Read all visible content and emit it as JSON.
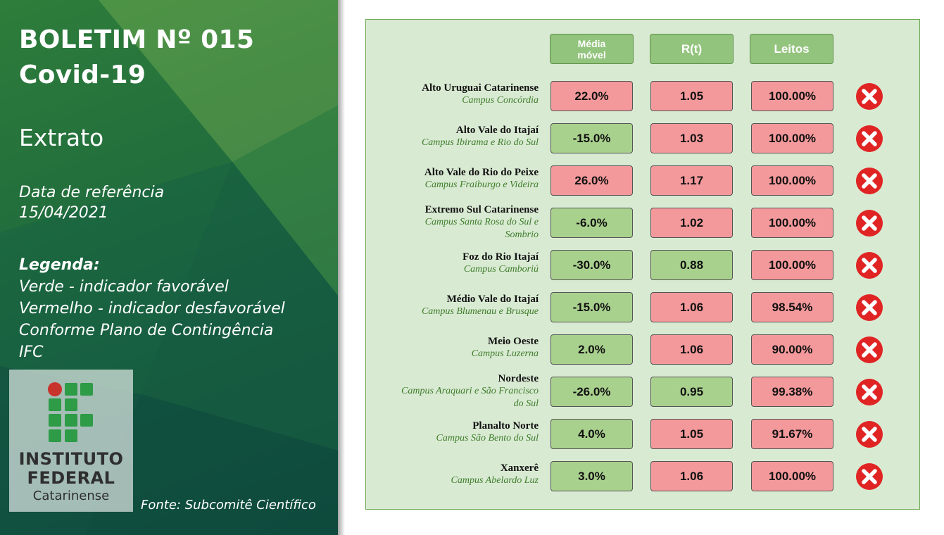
{
  "header": {
    "title_line1": "BOLETIM Nº 015",
    "title_line2": "Covid-19",
    "subtitle": "Extrato",
    "reference_label": "Data de referência",
    "reference_date": "15/04/2021"
  },
  "legend": {
    "title": "Legenda:",
    "lines": [
      "Verde - indicador favorável",
      "Vermelho - indicador desfavorável",
      "Conforme Plano de Contingência",
      "IFC"
    ]
  },
  "logo": {
    "line1": "INSTITUTO",
    "line2": "FEDERAL",
    "line3": "Catarinense"
  },
  "source": "Fonte: Subcomitê Científico",
  "colors": {
    "favorable": "#a9d18e",
    "unfavorable": "#f4999b",
    "header_fill": "#93c47d",
    "status_icon": "#e02424"
  },
  "table": {
    "columns": [
      "Média móvel",
      "R(t)",
      "Leitos"
    ],
    "status_icon_name": "x-circle-icon",
    "rows": [
      {
        "region": "Alto Uruguai Catarinense",
        "campus": "Campus Concórdia",
        "media_movel": "22.0%",
        "media_movel_status": "red",
        "rt": "1.05",
        "rt_status": "red",
        "leitos": "100.00%",
        "leitos_status": "red"
      },
      {
        "region": "Alto Vale do Itajaí",
        "campus": "Campus Ibirama e Rio do Sul",
        "media_movel": "-15.0%",
        "media_movel_status": "green",
        "rt": "1.03",
        "rt_status": "red",
        "leitos": "100.00%",
        "leitos_status": "red"
      },
      {
        "region": "Alto Vale do Rio do Peixe",
        "campus": "Campus Fraiburgo e Videira",
        "media_movel": "26.0%",
        "media_movel_status": "red",
        "rt": "1.17",
        "rt_status": "red",
        "leitos": "100.00%",
        "leitos_status": "red"
      },
      {
        "region": "Extremo Sul Catarinense",
        "campus": "Campus Santa Rosa do Sul e Sombrio",
        "media_movel": "-6.0%",
        "media_movel_status": "green",
        "rt": "1.02",
        "rt_status": "red",
        "leitos": "100.00%",
        "leitos_status": "red"
      },
      {
        "region": "Foz do Rio Itajaí",
        "campus": "Campus Camboriú",
        "media_movel": "-30.0%",
        "media_movel_status": "green",
        "rt": "0.88",
        "rt_status": "green",
        "leitos": "100.00%",
        "leitos_status": "red"
      },
      {
        "region": "Médio Vale do Itajaí",
        "campus": "Campus Blumenau e Brusque",
        "media_movel": "-15.0%",
        "media_movel_status": "green",
        "rt": "1.06",
        "rt_status": "red",
        "leitos": "98.54%",
        "leitos_status": "red"
      },
      {
        "region": "Meio Oeste",
        "campus": "Campus Luzerna",
        "media_movel": "2.0%",
        "media_movel_status": "green",
        "rt": "1.06",
        "rt_status": "red",
        "leitos": "90.00%",
        "leitos_status": "red"
      },
      {
        "region": "Nordeste",
        "campus": "Campus Araquari e São Francisco do Sul",
        "media_movel": "-26.0%",
        "media_movel_status": "green",
        "rt": "0.95",
        "rt_status": "green",
        "leitos": "99.38%",
        "leitos_status": "red"
      },
      {
        "region": "Planalto Norte",
        "campus": "Campus São Bento do Sul",
        "media_movel": "4.0%",
        "media_movel_status": "green",
        "rt": "1.05",
        "rt_status": "red",
        "leitos": "91.67%",
        "leitos_status": "red"
      },
      {
        "region": "Xanxerê",
        "campus": "Campus Abelardo Luz",
        "media_movel": "3.0%",
        "media_movel_status": "green",
        "rt": "1.06",
        "rt_status": "red",
        "leitos": "100.00%",
        "leitos_status": "red"
      }
    ]
  }
}
